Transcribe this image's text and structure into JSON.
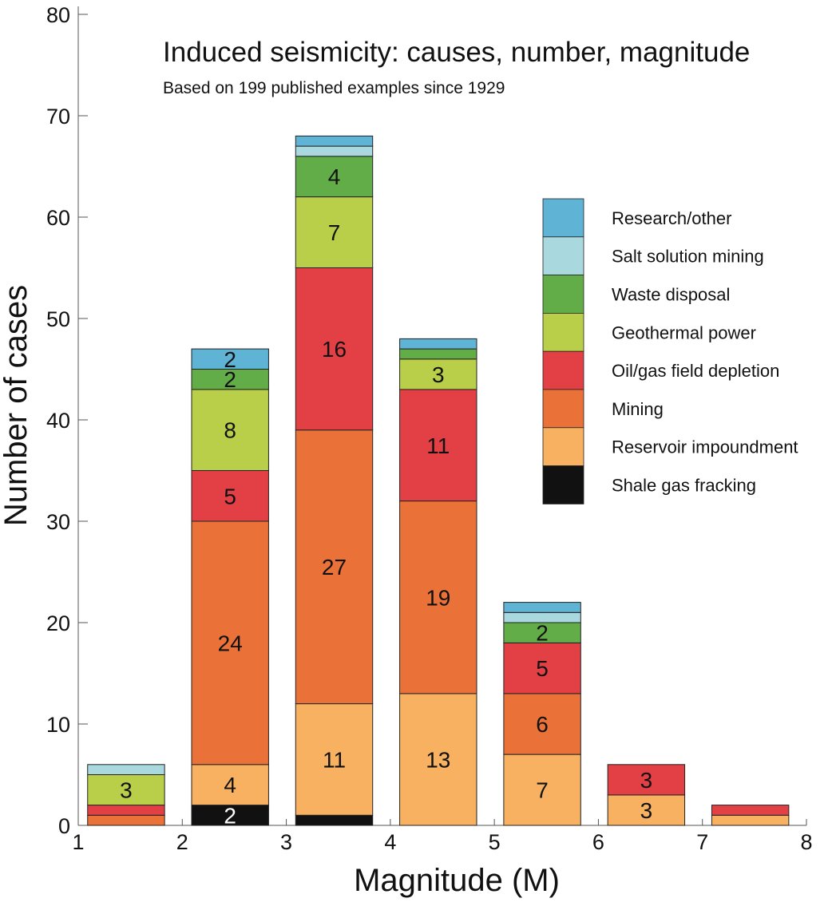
{
  "chart_data": {
    "type": "bar",
    "stacked": true,
    "title": "Induced seismicity: causes, number, magnitude",
    "subtitle": "Based on 199 published examples since 1929",
    "xlabel": "Magnitude (M)",
    "ylabel": "Number of cases",
    "xlim": [
      1,
      8
    ],
    "ylim": [
      0,
      80
    ],
    "xticks": [
      "1",
      "2",
      "3",
      "4",
      "5",
      "6",
      "7",
      "8"
    ],
    "yticks": [
      "0",
      "10",
      "20",
      "30",
      "40",
      "50",
      "60",
      "70",
      "80"
    ],
    "grid": false,
    "legend_position": "right",
    "bins": [
      [
        1,
        2
      ],
      [
        2,
        3
      ],
      [
        3,
        4
      ],
      [
        4,
        5
      ],
      [
        5,
        6
      ],
      [
        6,
        7
      ],
      [
        7,
        8
      ]
    ],
    "series": [
      {
        "name": "Shale gas fracking",
        "color": "#111111",
        "label_color": "#ffffff",
        "values": [
          0,
          2,
          1,
          0,
          0,
          0,
          0
        ]
      },
      {
        "name": "Reservoir impoundment",
        "color": "#f8b160",
        "values": [
          0,
          4,
          11,
          13,
          7,
          3,
          1
        ]
      },
      {
        "name": "Mining",
        "color": "#ea7138",
        "values": [
          1,
          24,
          27,
          19,
          6,
          0,
          0
        ]
      },
      {
        "name": "Oil/gas field depletion",
        "color": "#e34046",
        "values": [
          1,
          5,
          16,
          11,
          5,
          3,
          1
        ]
      },
      {
        "name": "Geothermal power",
        "color": "#b9cf4a",
        "values": [
          3,
          8,
          7,
          3,
          0,
          0,
          0
        ]
      },
      {
        "name": "Waste disposal",
        "color": "#63ad48",
        "values": [
          0,
          2,
          4,
          1,
          2,
          0,
          0
        ]
      },
      {
        "name": "Salt solution mining",
        "color": "#a9d8de",
        "values": [
          1,
          0,
          1,
          0,
          1,
          0,
          0
        ]
      },
      {
        "name": "Research/other",
        "color": "#5fb3d5",
        "values": [
          0,
          2,
          1,
          1,
          1,
          0,
          0
        ]
      }
    ]
  }
}
